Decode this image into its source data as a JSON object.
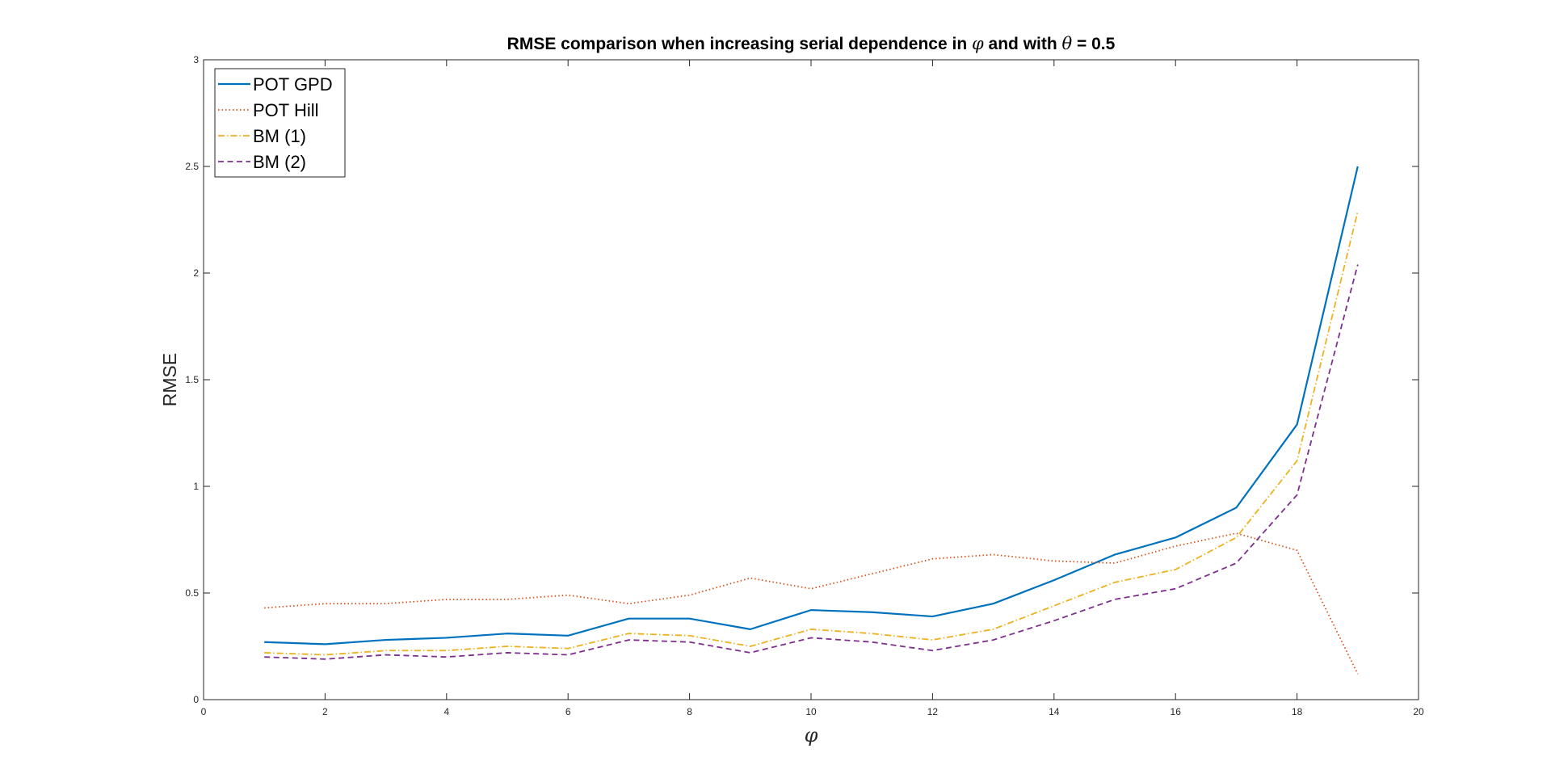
{
  "chart_data": {
    "type": "line",
    "title_prefix": "RMSE comparison when increasing serial dependence in ",
    "title_symbol_1": "φ",
    "title_middle": " and with ",
    "title_symbol_2": "θ",
    "title_suffix": " = 0.5",
    "xlabel": "φ",
    "ylabel": "RMSE",
    "xlim": [
      0,
      20
    ],
    "ylim": [
      0,
      3
    ],
    "xticks": [
      0,
      2,
      4,
      6,
      8,
      10,
      12,
      14,
      16,
      18,
      20
    ],
    "yticks": [
      0,
      0.5,
      1,
      1.5,
      2,
      2.5,
      3
    ],
    "grid": false,
    "legend_position": "top-left",
    "x": [
      1,
      2,
      3,
      4,
      5,
      6,
      7,
      8,
      9,
      10,
      11,
      12,
      13,
      14,
      15,
      16,
      17,
      18,
      19
    ],
    "series": [
      {
        "name": "POT GPD",
        "color": "#0072BD",
        "style": "solid",
        "values": [
          0.27,
          0.26,
          0.28,
          0.29,
          0.31,
          0.3,
          0.38,
          0.38,
          0.33,
          0.42,
          0.41,
          0.39,
          0.45,
          0.56,
          0.68,
          0.76,
          0.9,
          1.29,
          2.5
        ]
      },
      {
        "name": "POT Hill",
        "color": "#D95319",
        "style": "dotted",
        "values": [
          0.43,
          0.45,
          0.45,
          0.47,
          0.47,
          0.49,
          0.45,
          0.49,
          0.57,
          0.52,
          0.59,
          0.66,
          0.68,
          0.65,
          0.64,
          0.72,
          0.78,
          0.7,
          0.12
        ]
      },
      {
        "name": "BM (1)",
        "color": "#EDB120",
        "style": "dashdot",
        "values": [
          0.22,
          0.21,
          0.23,
          0.23,
          0.25,
          0.24,
          0.31,
          0.3,
          0.25,
          0.33,
          0.31,
          0.28,
          0.33,
          0.44,
          0.55,
          0.61,
          0.76,
          1.12,
          2.29
        ]
      },
      {
        "name": "BM (2)",
        "color": "#7E2F8E",
        "style": "dashed",
        "values": [
          0.2,
          0.19,
          0.21,
          0.2,
          0.22,
          0.21,
          0.28,
          0.27,
          0.22,
          0.29,
          0.27,
          0.23,
          0.28,
          0.37,
          0.47,
          0.52,
          0.64,
          0.96,
          2.04
        ]
      }
    ]
  }
}
